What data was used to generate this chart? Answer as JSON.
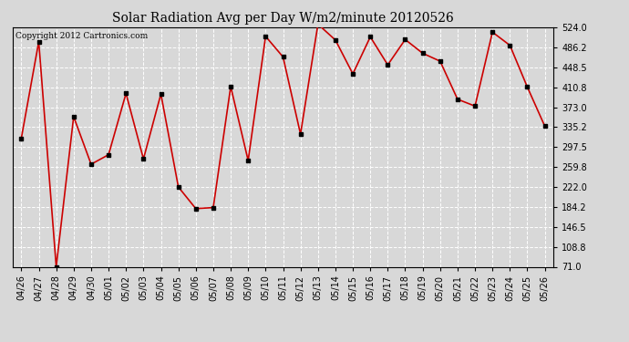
{
  "title": "Solar Radiation Avg per Day W/m2/minute 20120526",
  "copyright_text": "Copyright 2012 Cartronics.com",
  "dates": [
    "04/26",
    "04/27",
    "04/28",
    "04/29",
    "04/30",
    "05/01",
    "05/02",
    "05/03",
    "05/04",
    "05/05",
    "05/06",
    "05/07",
    "05/08",
    "05/09",
    "05/10",
    "05/11",
    "05/12",
    "05/13",
    "05/14",
    "05/15",
    "05/16",
    "05/17",
    "05/18",
    "05/19",
    "05/20",
    "05/21",
    "05/22",
    "05/23",
    "05/24",
    "05/25",
    "05/26"
  ],
  "values": [
    314,
    497,
    71,
    355,
    265,
    283,
    399,
    275,
    398,
    222,
    181,
    183,
    412,
    272,
    507,
    468,
    322,
    530,
    500,
    436,
    506,
    453,
    501,
    475,
    460,
    388,
    375,
    515,
    490,
    411,
    337
  ],
  "ylim": [
    71.0,
    524.0
  ],
  "yticks": [
    71.0,
    108.8,
    146.5,
    184.2,
    222.0,
    259.8,
    297.5,
    335.2,
    373.0,
    410.8,
    448.5,
    486.2,
    524.0
  ],
  "line_color": "#cc0000",
  "marker_color": "#000000",
  "bg_color": "#d8d8d8",
  "grid_color": "#ffffff",
  "title_fontsize": 10,
  "tick_fontsize": 7,
  "copyright_fontsize": 6.5
}
